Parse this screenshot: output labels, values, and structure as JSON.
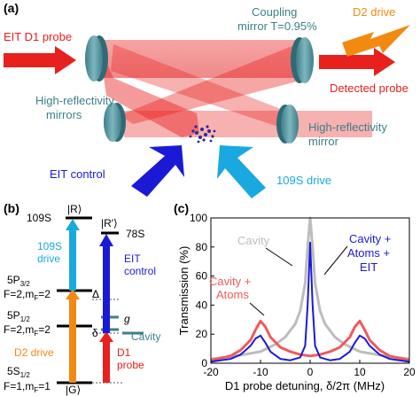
{
  "panel_a": {
    "label": "(a)",
    "eit_probe": "EIT D1 probe",
    "coupling_line1": "Coupling",
    "coupling_line2": "mirror T=0.95%",
    "d2_drive": "D2 drive",
    "detected_probe": "Detected probe",
    "hr_left_line1": "High-reflectivity",
    "hr_left_line2": "mirrors",
    "hr_right_line1": "High-reflectivity",
    "hr_right_line2": "mirror",
    "eit_control": "EIT control",
    "drive_109s": "109S drive",
    "colors": {
      "probe": "#e8201e",
      "mirror": "#4f8f9a",
      "control": "#1a1ad6",
      "drive109": "#19a9e0",
      "d2": "#f28a12",
      "atoms": "#2a2a9a"
    }
  },
  "panel_b": {
    "label": "(b)",
    "level_r": "|R⟩",
    "level_r_prime": "|R′⟩",
    "level_109s": "109S",
    "level_78s": "78S",
    "level_5p32_a": "5P",
    "level_5p32_sub": "3/2",
    "level_5p32_f": "F=2,m",
    "level_5p32_fsub": "F",
    "level_5p32_fval": "=2",
    "level_5p12_a": "5P",
    "level_5p12_sub": "1/2",
    "level_5p12_f": "F=2,m",
    "level_5p12_fsub": "F",
    "level_5p12_fval": "=2",
    "level_5s12_a": "5S",
    "level_5s12_sub": "1/2",
    "level_5s12_f": "F=1,m",
    "level_5s12_fsub": "F",
    "level_5s12_fval": "=1",
    "level_g": "|G⟩",
    "drive_109s_line1": "109S",
    "drive_109s_line2": "drive",
    "eit_control_line1": "EIT",
    "eit_control_line2": "control",
    "d2_drive": "D2 drive",
    "d1_probe_line1": "D1",
    "d1_probe_line2": "probe",
    "delta_upper": "Δ",
    "delta_lower": "δ",
    "g": "g",
    "cavity": "Cavity"
  },
  "panel_c": {
    "label": "(c)",
    "legend_cavity": "Cavity",
    "legend_cavity_atoms_line1": "Cavity +",
    "legend_cavity_atoms_line2": "Atoms",
    "legend_eit_line1": "Cavity +",
    "legend_eit_line2": "Atoms +",
    "legend_eit_line3": "EIT"
  },
  "chart_data": {
    "type": "line",
    "xlabel": "D1 probe detuning, δ/2π (MHz)",
    "ylabel": "Transmission (%)",
    "xlim": [
      -20,
      20
    ],
    "ylim": [
      0,
      100
    ],
    "xticks": [
      -20,
      -10,
      0,
      10,
      20
    ],
    "yticks": [
      0,
      20,
      40,
      60,
      80,
      100
    ],
    "series": [
      {
        "name": "Cavity",
        "color": "#bdbdbd",
        "x": [
          -20,
          -15,
          -10,
          -7,
          -5,
          -3,
          -2,
          -1,
          -0.5,
          0,
          0.5,
          1,
          2,
          3,
          5,
          7,
          10,
          15,
          20
        ],
        "y": [
          3,
          5,
          8,
          13,
          18,
          27,
          36,
          55,
          80,
          100,
          80,
          55,
          36,
          27,
          18,
          13,
          8,
          5,
          3
        ]
      },
      {
        "name": "Cavity + Atoms",
        "color": "#f05a5a",
        "x": [
          -20,
          -16,
          -14,
          -12,
          -11,
          -10,
          -9,
          -8,
          -6,
          -4,
          -2,
          0,
          2,
          4,
          6,
          8,
          9,
          10,
          11,
          12,
          14,
          16,
          20
        ],
        "y": [
          2,
          5,
          9,
          16,
          23,
          29,
          25,
          18,
          11,
          8,
          6,
          5,
          6,
          8,
          11,
          18,
          25,
          29,
          23,
          16,
          9,
          5,
          2
        ]
      },
      {
        "name": "Cavity + Atoms + EIT",
        "color": "#1a1ad6",
        "x": [
          -20,
          -16,
          -14,
          -12,
          -11,
          -10,
          -9,
          -8,
          -6,
          -4,
          -2,
          -1,
          -0.5,
          0,
          0.5,
          1,
          2,
          4,
          6,
          8,
          9,
          10,
          11,
          12,
          14,
          16,
          20
        ],
        "y": [
          1,
          3,
          6,
          12,
          17,
          19,
          14,
          8,
          3,
          2,
          4,
          12,
          40,
          83,
          40,
          12,
          4,
          2,
          3,
          8,
          14,
          19,
          17,
          12,
          6,
          3,
          1
        ]
      }
    ]
  }
}
